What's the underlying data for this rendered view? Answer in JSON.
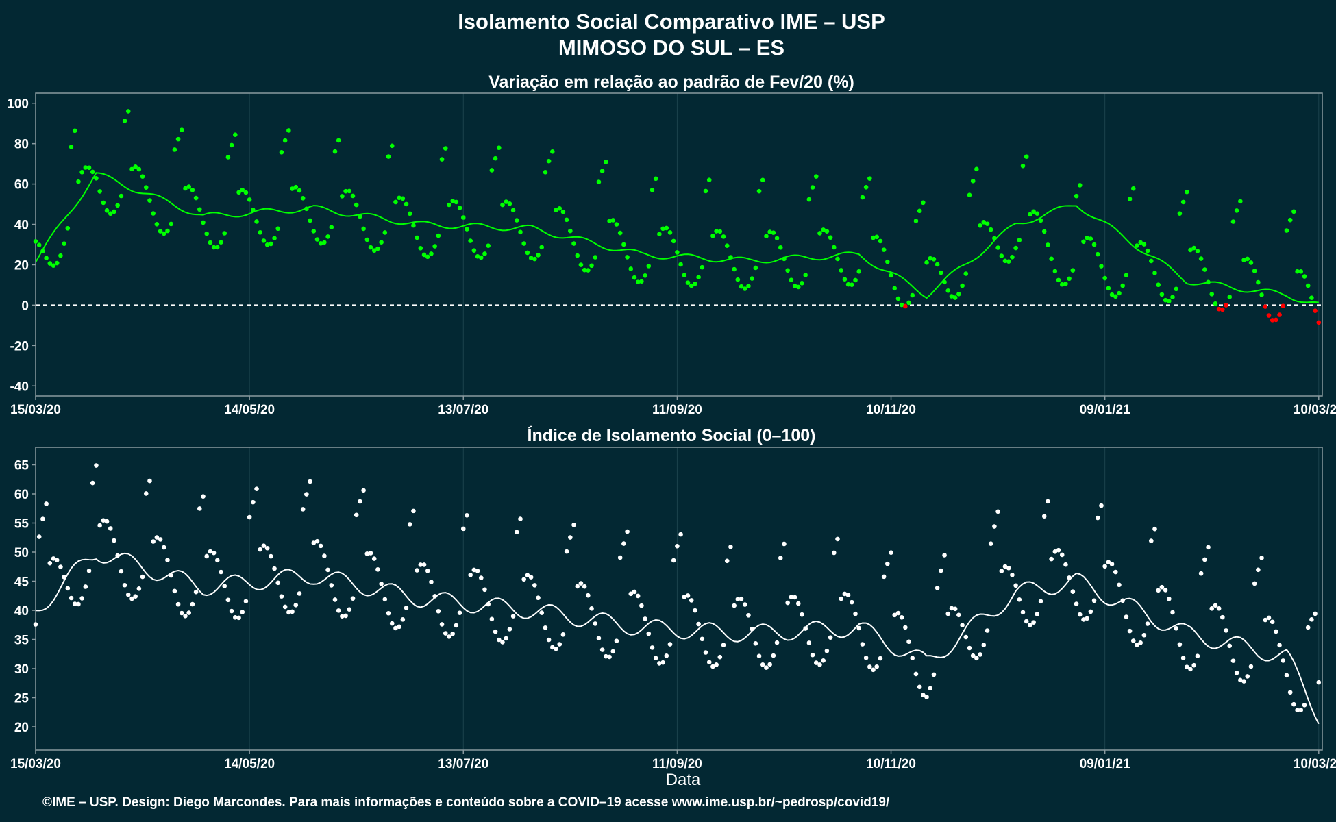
{
  "title_line1": "Isolamento Social Comparativo IME – USP",
  "title_line2": "MIMOSO DO SUL – ES",
  "footer": "©IME – USP. Design: Diego Marcondes. Para mais informações e conteúdo sobre a COVID–19 acesse www.ime.usp.br/~pedrosp/covid19/",
  "xlabel": "Data",
  "colors": {
    "background": "#032833",
    "positive": "#00ff00",
    "negative": "#ff0000",
    "index": "#ffffff",
    "axis": "#8a9aa0"
  },
  "chart_data": [
    {
      "type": "scatter",
      "title": "Variação em relação ao padrão de Fev/20 (%)",
      "x_ticks": [
        "15/03/20",
        "14/05/20",
        "13/07/20",
        "11/09/20",
        "10/11/20",
        "09/01/21",
        "10/03/21"
      ],
      "x_range": [
        "2020-03-15",
        "2021-03-11"
      ],
      "ylim": [
        -45,
        105
      ],
      "y_ticks": [
        -40,
        -20,
        0,
        20,
        40,
        60,
        80,
        100
      ],
      "reference_line": 0,
      "grid": true,
      "series": [
        {
          "x": [
            "2020-03-15",
            "2020-04-01",
            "2020-05-01",
            "2020-06-01",
            "2020-07-01",
            "2020-08-01",
            "2020-09-01",
            "2020-10-01",
            "2020-11-01",
            "2020-11-20",
            "2020-12-15",
            "2021-01-01",
            "2021-02-01",
            "2021-03-01",
            "2021-03-10"
          ],
          "values": [
            22,
            65,
            44,
            48,
            40,
            38,
            25,
            22,
            25,
            5,
            40,
            50,
            12,
            5,
            0
          ]
        },
        {
          "x": [
            "2020-03-15",
            "2020-04-01",
            "2020-05-01",
            "2020-06-01",
            "2020-07-01",
            "2020-08-01",
            "2020-09-01",
            "2020-10-01",
            "2020-11-01",
            "2020-11-20",
            "2020-12-15",
            "2021-01-01",
            "2021-02-01",
            "2021-03-01",
            "2021-03-10"
          ],
          "values": [
            20,
            62,
            42,
            45,
            38,
            37,
            25,
            22,
            24,
            8,
            38,
            20,
            15,
            5,
            0
          ]
        }
      ]
    },
    {
      "type": "scatter",
      "title": "Índice de Isolamento Social (0–100)",
      "x_ticks": [
        "15/03/20",
        "14/05/20",
        "13/07/20",
        "11/09/20",
        "10/11/20",
        "09/01/21",
        "10/03/21"
      ],
      "x_range": [
        "2020-03-15",
        "2021-03-11"
      ],
      "ylim": [
        16,
        68
      ],
      "y_ticks": [
        20,
        25,
        30,
        35,
        40,
        45,
        50,
        55,
        60,
        65
      ],
      "grid": true,
      "series": [
        {
          "x": [
            "2020-03-15",
            "2020-04-01",
            "2020-05-01",
            "2020-06-01",
            "2020-07-01",
            "2020-08-01",
            "2020-09-01",
            "2020-10-01",
            "2020-11-01",
            "2020-11-20",
            "2020-12-15",
            "2021-01-01",
            "2021-02-01",
            "2021-03-01",
            "2021-03-10"
          ],
          "values": [
            40,
            50,
            44,
            46,
            42,
            40,
            37,
            36,
            37,
            31,
            43,
            45,
            36,
            32,
            22
          ]
        }
      ]
    }
  ]
}
